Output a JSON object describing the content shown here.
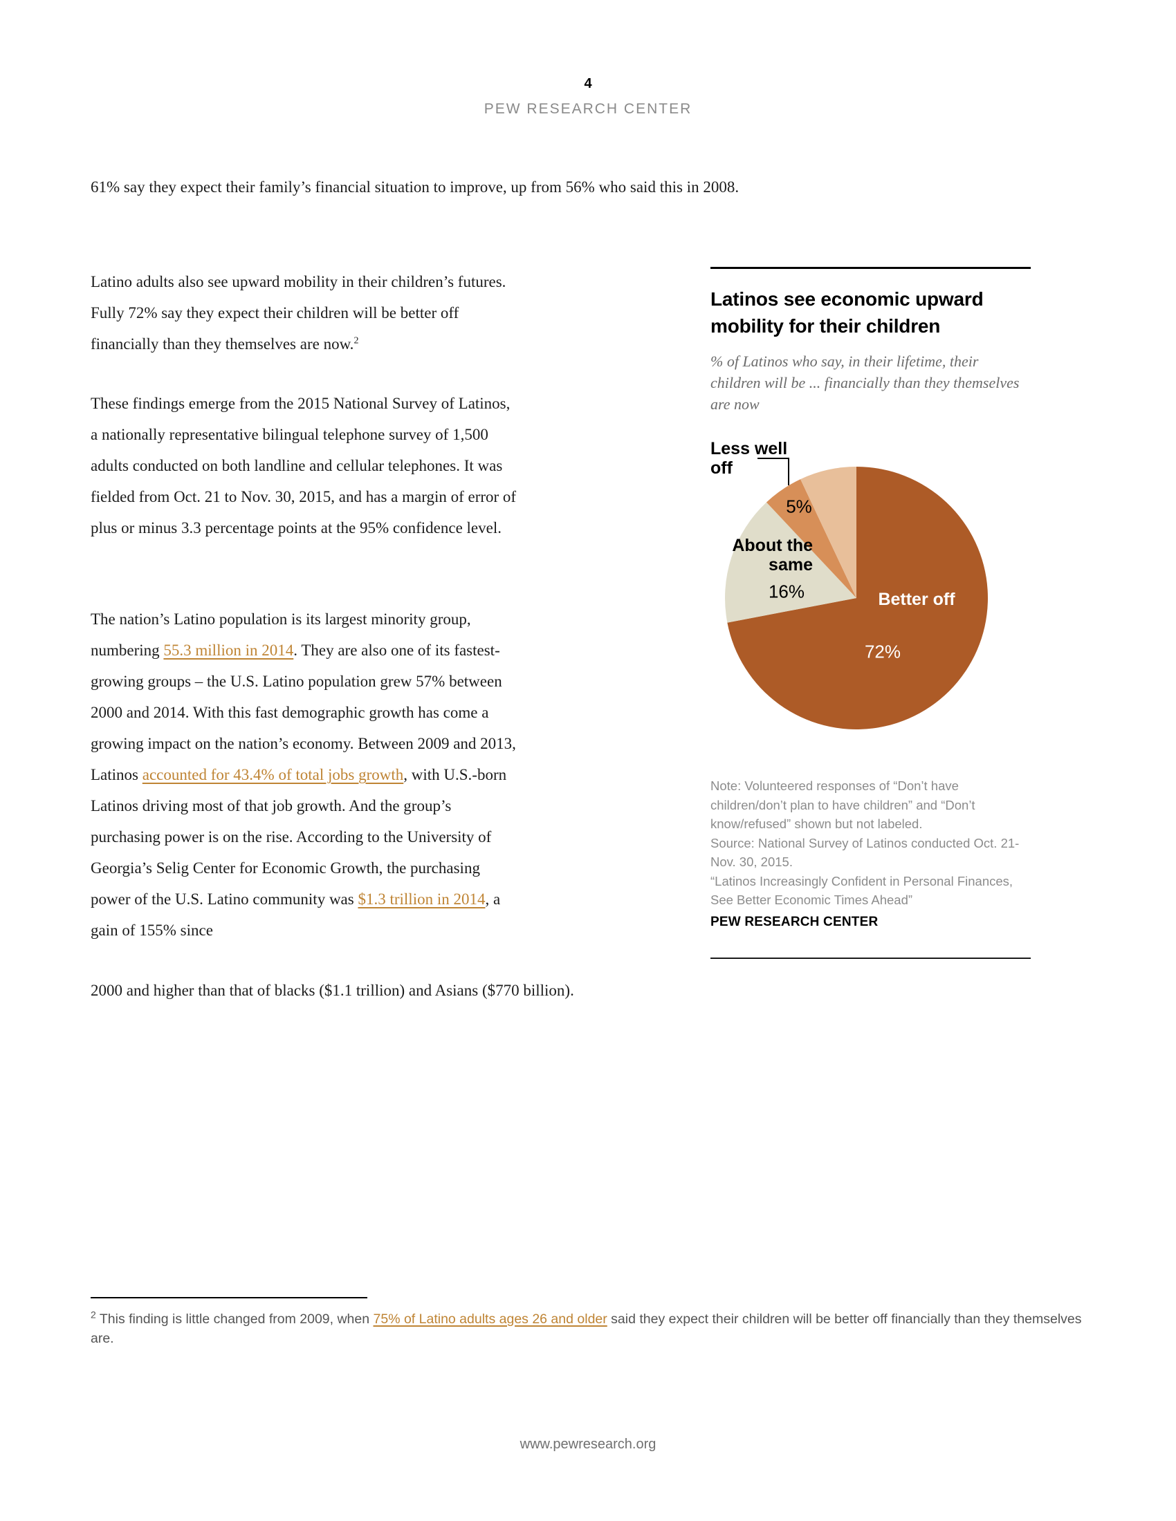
{
  "page": {
    "number": "4",
    "site": "PEW RESEARCH CENTER",
    "footer_url": "www.pewresearch.org"
  },
  "article": {
    "paragraph_1": {
      "segments": [
        {
          "text": "61% say they expect their family’s financial situation to improve, up from 56% who said this in 2008."
        }
      ]
    },
    "paragraph_2": {
      "segments": [
        {
          "text": "Latino adults also see upward mobility in their children’s futures. Fully 72% say they expect their children will be better off financially than they themselves are now."
        },
        {
          "sup": "2"
        }
      ]
    },
    "paragraph_3": {
      "segments": [
        {
          "text": "These findings emerge from the 2015 National Survey of Latinos, a nationally representative bilingual telephone survey of 1,500 adults conducted on both landline and cellular telephones. It was fielded from Oct. 21 to Nov. 30, 2015, and has a margin of error of plus or minus 3.3 percentage points at the 95% confidence level."
        }
      ]
    },
    "paragraph_4": {
      "segments": [
        {
          "text": "The nation’s Latino population is its largest minority group, numbering "
        },
        {
          "text": "55.3 million in 2014",
          "link": true
        },
        {
          "text": ". They are also one of its fastest-growing groups – the U.S. Latino population grew 57% between 2000 and 2014. With this fast demographic growth has come a growing impact on the nation’s economy. Between 2009 and 2013, Latinos "
        },
        {
          "text": "accounted for 43.4% of total jobs growth",
          "link": true
        },
        {
          "text": ", with U.S.-born Latinos driving most of that job growth. And the group’s purchasing power is on the rise. According to the University of Georgia’s Selig Center for Economic Growth, the purchasing power of the U.S. Latino community was "
        },
        {
          "text": "$1.3 trillion in 2014",
          "link": true
        },
        {
          "text": ", a gain of 155% since"
        }
      ]
    },
    "paragraph_4_continued": {
      "segments": [
        {
          "text": "2000 and higher than that of blacks ($1.1 trillion) and Asians ($770 billion)."
        }
      ]
    },
    "footnote": {
      "marker": "2",
      "segments": [
        {
          "text": " This finding is little changed from 2009, when "
        },
        {
          "text": "75% of Latino adults ages 26 and older",
          "link": true
        },
        {
          "text": " said they expect their children will be better off financially than they themselves are."
        }
      ]
    }
  },
  "chart": {
    "title": "Latinos see economic upward mobility for their children",
    "subtitle": "% of Latinos who say, in their lifetime, their children will be ... financially than they themselves are now",
    "labels": {
      "better_off": "Better off",
      "better_off_value": "72%",
      "about_same": "About the same",
      "about_same_value": "16%",
      "less_well_off": "Less well off",
      "less_well_off_value": "5%"
    },
    "note": "Note: Volunteered responses of “Don’t have children/don’t plan to have children” and “Don’t know/refused” shown but not labeled.",
    "source": "Source: National Survey of Latinos conducted Oct. 21-Nov. 30, 2015.",
    "report": "“Latinos Increasingly Confident in Personal Finances, See Better Economic Times Ahead”",
    "branding": "PEW RESEARCH CENTER"
  },
  "chart_data": {
    "type": "pie",
    "title": "Latinos see economic upward mobility for their children",
    "subtitle": "% of Latinos who say, in their lifetime, their children will be ... financially than they themselves are now",
    "start_angle_deg": -90,
    "direction": "clockwise",
    "slices": [
      {
        "label": "Better off",
        "value": 72,
        "color": "#ad5b27",
        "label_color": "#ffffff"
      },
      {
        "label": "About the same",
        "value": 16,
        "color": "#e0ddca",
        "label_color": "#000000"
      },
      {
        "label": "Less well off",
        "value": 5,
        "color": "#d78f58",
        "label_color": "#000000"
      },
      {
        "label": "",
        "value": 7,
        "color": "#e8bf9a",
        "label_color": "#000000",
        "note": "volunteered responses shown but not labeled"
      }
    ],
    "note": "Volunteered responses of “Don’t have children/don’t plan to have children” and “Don’t know/refused” shown but not labeled.",
    "source": "National Survey of Latinos conducted Oct. 21-Nov. 30, 2015."
  }
}
